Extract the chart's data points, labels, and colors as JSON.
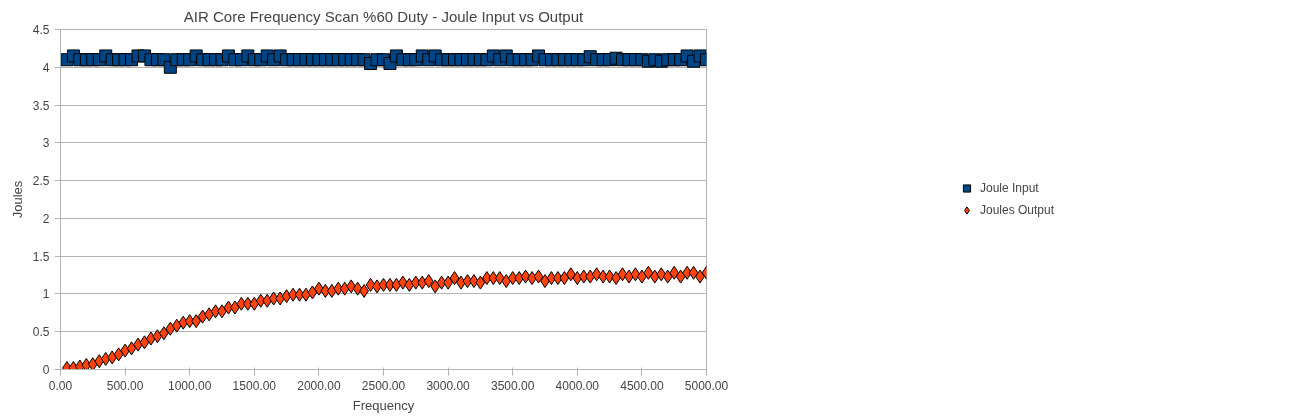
{
  "chart_data": {
    "type": "scatter",
    "title": "AIR Core Frequency Scan %60 Duty - Joule Input vs Output",
    "xlabel": "Frequency",
    "ylabel": "Joules",
    "x": [
      50,
      100,
      150,
      200,
      250,
      300,
      350,
      400,
      450,
      500,
      550,
      600,
      650,
      700,
      750,
      800,
      850,
      900,
      950,
      1000,
      1050,
      1100,
      1150,
      1200,
      1250,
      1300,
      1350,
      1400,
      1450,
      1500,
      1550,
      1600,
      1650,
      1700,
      1750,
      1800,
      1850,
      1900,
      1950,
      2000,
      2050,
      2100,
      2150,
      2200,
      2250,
      2300,
      2350,
      2400,
      2450,
      2500,
      2550,
      2600,
      2650,
      2700,
      2750,
      2800,
      2850,
      2900,
      2950,
      3000,
      3050,
      3100,
      3150,
      3200,
      3250,
      3300,
      3350,
      3400,
      3450,
      3500,
      3550,
      3600,
      3650,
      3700,
      3750,
      3800,
      3850,
      3900,
      3950,
      4000,
      4050,
      4100,
      4150,
      4200,
      4250,
      4300,
      4350,
      4400,
      4450,
      4500,
      4550,
      4600,
      4650,
      4700,
      4750,
      4800,
      4850,
      4900,
      4950,
      5000
    ],
    "series": [
      {
        "name": "Joule Input",
        "color": "#004586",
        "marker": "square",
        "values": [
          4.1,
          4.15,
          4.1,
          4.1,
          4.1,
          4.1,
          4.15,
          4.1,
          4.1,
          4.1,
          4.1,
          4.15,
          4.15,
          4.1,
          4.1,
          4.1,
          4.0,
          4.1,
          4.1,
          4.1,
          4.15,
          4.1,
          4.1,
          4.1,
          4.1,
          4.15,
          4.1,
          4.1,
          4.15,
          4.1,
          4.1,
          4.15,
          4.1,
          4.15,
          4.1,
          4.1,
          4.1,
          4.1,
          4.1,
          4.1,
          4.1,
          4.1,
          4.1,
          4.1,
          4.1,
          4.1,
          4.1,
          4.05,
          4.1,
          4.1,
          4.05,
          4.15,
          4.1,
          4.1,
          4.1,
          4.15,
          4.1,
          4.15,
          4.1,
          4.1,
          4.1,
          4.1,
          4.1,
          4.1,
          4.1,
          4.1,
          4.15,
          4.1,
          4.15,
          4.1,
          4.1,
          4.1,
          4.1,
          4.15,
          4.1,
          4.1,
          4.1,
          4.1,
          4.1,
          4.1,
          4.1,
          4.14,
          4.1,
          4.1,
          4.1,
          4.12,
          4.1,
          4.1,
          4.1,
          4.1,
          4.08,
          4.1,
          4.08,
          4.1,
          4.1,
          4.1,
          4.15,
          4.08,
          4.15,
          4.1
        ]
      },
      {
        "name": "Joules Output",
        "color": "#ff420e",
        "marker": "diamond",
        "values": [
          0.02,
          0.02,
          0.04,
          0.06,
          0.07,
          0.11,
          0.14,
          0.16,
          0.2,
          0.25,
          0.28,
          0.33,
          0.36,
          0.41,
          0.44,
          0.48,
          0.54,
          0.58,
          0.62,
          0.64,
          0.64,
          0.7,
          0.73,
          0.77,
          0.77,
          0.82,
          0.82,
          0.87,
          0.87,
          0.87,
          0.91,
          0.91,
          0.94,
          0.94,
          0.97,
          0.99,
          0.99,
          0.99,
          1.02,
          1.07,
          1.04,
          1.04,
          1.07,
          1.07,
          1.1,
          1.07,
          1.04,
          1.12,
          1.1,
          1.12,
          1.12,
          1.12,
          1.15,
          1.12,
          1.15,
          1.15,
          1.17,
          1.1,
          1.15,
          1.15,
          1.21,
          1.15,
          1.17,
          1.17,
          1.15,
          1.21,
          1.21,
          1.21,
          1.17,
          1.21,
          1.21,
          1.23,
          1.21,
          1.23,
          1.17,
          1.21,
          1.21,
          1.21,
          1.26,
          1.21,
          1.23,
          1.23,
          1.26,
          1.23,
          1.23,
          1.21,
          1.26,
          1.23,
          1.26,
          1.23,
          1.28,
          1.23,
          1.26,
          1.23,
          1.28,
          1.23,
          1.28,
          1.28,
          1.23,
          1.28
        ]
      }
    ],
    "xlim": [
      0,
      5000
    ],
    "xticks": [
      {
        "value": 0,
        "label": "0.00"
      },
      {
        "value": 500,
        "label": "500.00"
      },
      {
        "value": 1000,
        "label": "1000.00"
      },
      {
        "value": 1500,
        "label": "1500.00"
      },
      {
        "value": 2000,
        "label": "2000.00"
      },
      {
        "value": 2500,
        "label": "2500.00"
      },
      {
        "value": 3000,
        "label": "3000.00"
      },
      {
        "value": 3500,
        "label": "3500.00"
      },
      {
        "value": 4000,
        "label": "4000.00"
      },
      {
        "value": 4500,
        "label": "4500.00"
      },
      {
        "value": 5000,
        "label": "5000.00"
      }
    ],
    "ylim": [
      0,
      4.5
    ],
    "yticks": [
      0,
      0.5,
      1,
      1.5,
      2,
      2.5,
      3,
      3.5,
      4,
      4.5
    ],
    "grid": "y",
    "legend": "right"
  }
}
